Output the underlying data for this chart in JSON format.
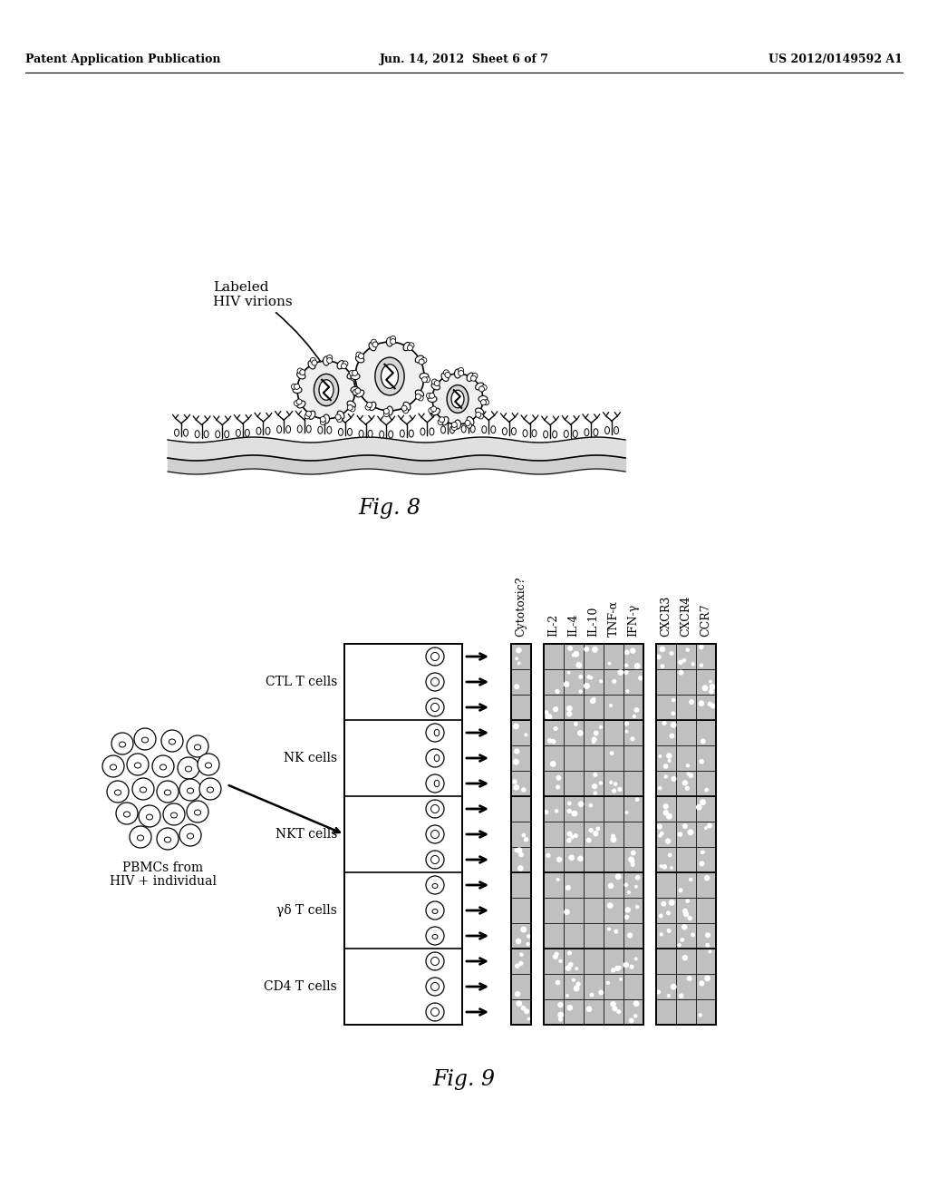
{
  "title_left": "Patent Application Publication",
  "title_center": "Jun. 14, 2012  Sheet 6 of 7",
  "title_right": "US 2012/0149592 A1",
  "fig8_label": "Fig. 8",
  "fig9_label": "Fig. 9",
  "fig8_annotation_line1": "Labeled",
  "fig8_annotation_line2": "HIV virions",
  "pbmc_label_line1": "PBMCs from",
  "pbmc_label_line2": "HIV + individual",
  "cell_types": [
    "CTL T cells",
    "NK cells",
    "NKT cells",
    "γδ T cells",
    "CD4 T cells"
  ],
  "n_rows_per_type": [
    3,
    3,
    3,
    3,
    3
  ],
  "cytokine_cols": [
    "IL-2",
    "IL-4",
    "IL-10",
    "TNF-α",
    "IFN-γ"
  ],
  "receptor_cols": [
    "CXCR3",
    "CXCR4",
    "CCR7"
  ],
  "background": "#ffffff"
}
